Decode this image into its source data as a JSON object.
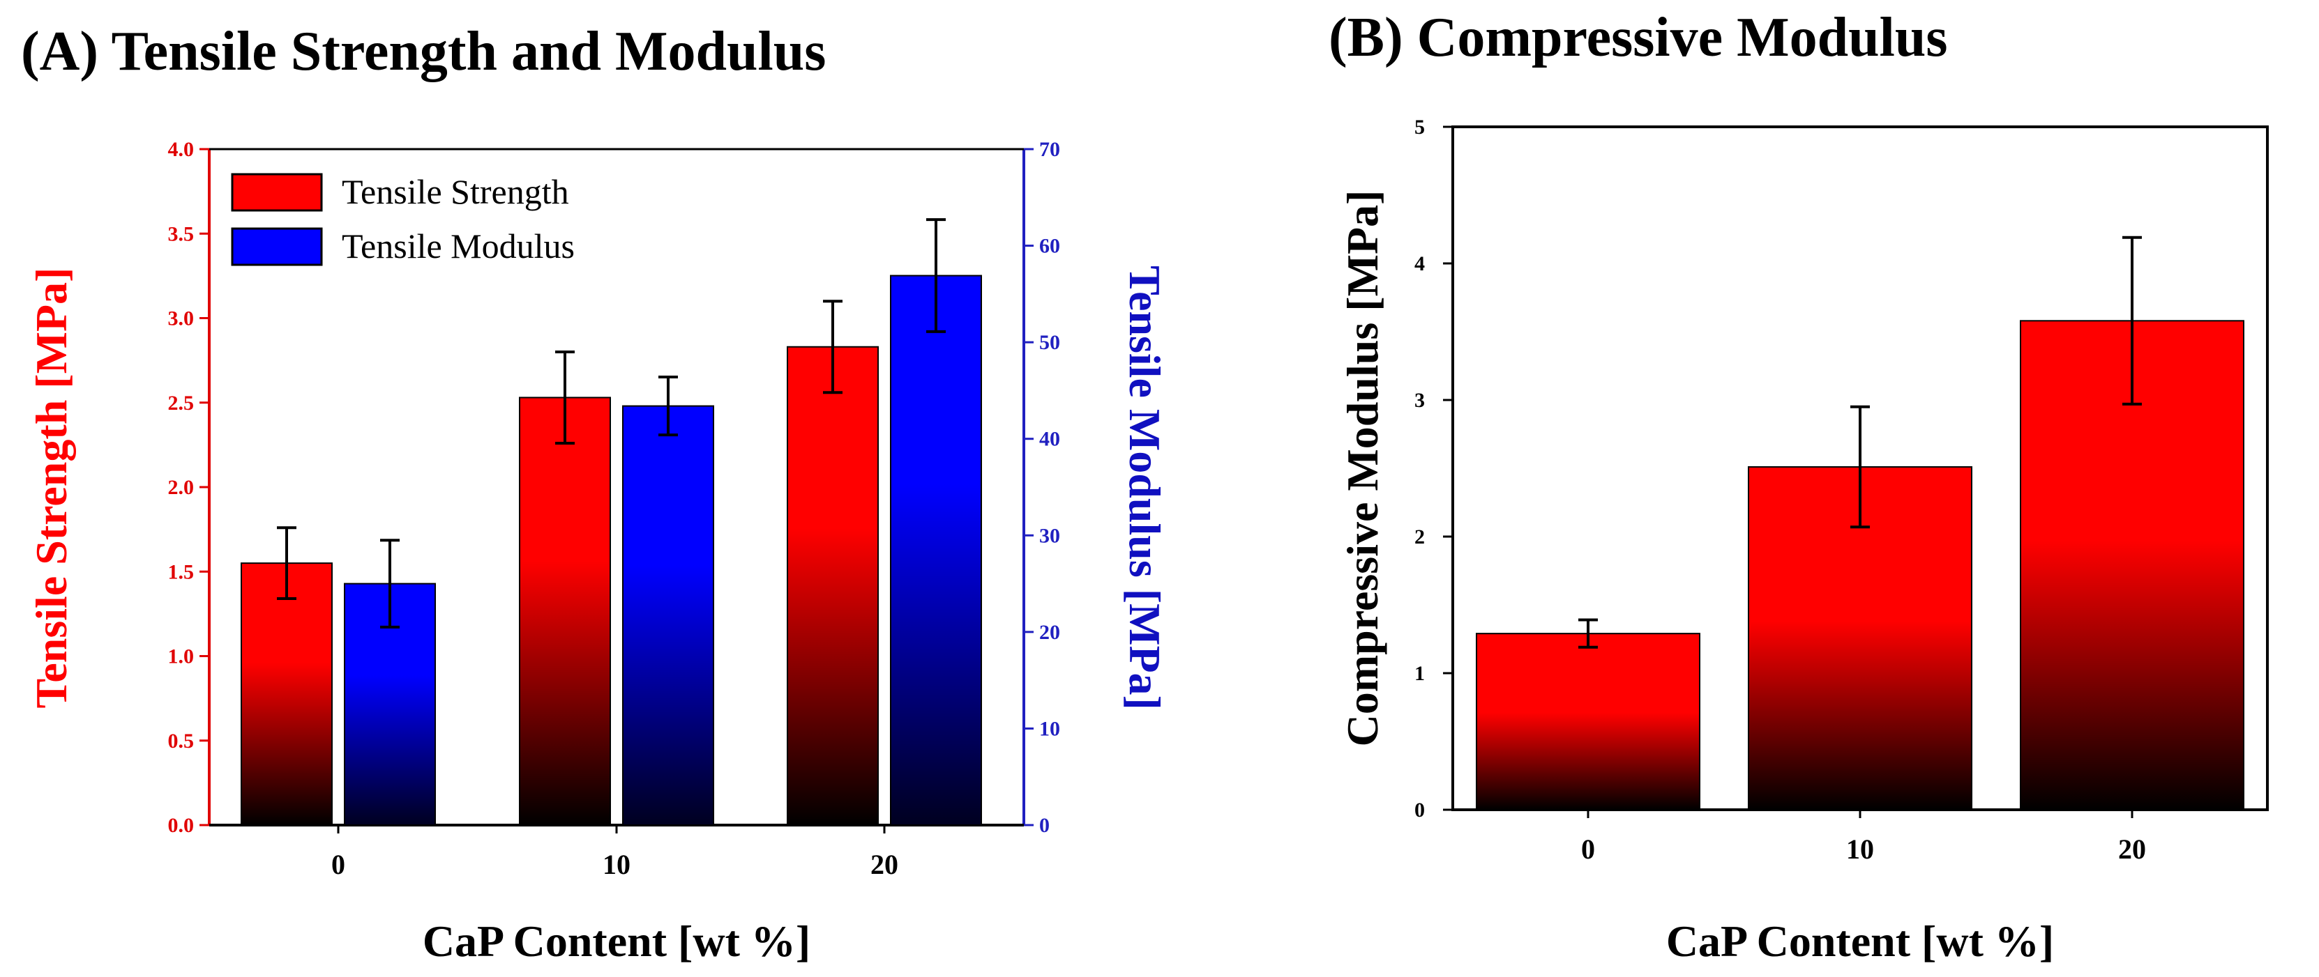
{
  "colors": {
    "strength": "#ff0000",
    "modulus": "#0000ff",
    "dark": "#000000",
    "axis_red": "#e00000",
    "axis_blue": "#2020c0"
  },
  "chart_data": [
    {
      "type": "bar",
      "title": "(A) Tensile Strength and Modulus",
      "categories": [
        "0",
        "10",
        "20"
      ],
      "xlabel": "CaP Content [wt %]",
      "ylabel": "Tensile Strength [MPa]",
      "ylabel_right": "Tensile Modulus [MPa]",
      "ylim": [
        0,
        4.0
      ],
      "ylim_right": [
        0,
        70
      ],
      "yticks": [
        "0.0",
        "0.5",
        "1.0",
        "1.5",
        "2.0",
        "2.5",
        "3.0",
        "3.5",
        "4.0"
      ],
      "yticks_right": [
        "0",
        "10",
        "20",
        "30",
        "40",
        "50",
        "60",
        "70"
      ],
      "legend_position": "top-left",
      "series": [
        {
          "name": "Tensile Strength",
          "axis": "left",
          "values": [
            1.55,
            2.53,
            2.83
          ],
          "errors": [
            0.21,
            0.27,
            0.27
          ]
        },
        {
          "name": "Tensile Modulus",
          "axis": "right",
          "values": [
            25.0,
            43.4,
            56.9
          ],
          "errors": [
            4.5,
            3.0,
            5.8
          ]
        }
      ]
    },
    {
      "type": "bar",
      "title": "(B) Compressive Modulus",
      "categories": [
        "0",
        "10",
        "20"
      ],
      "xlabel": "CaP Content [wt %]",
      "ylabel": "Compressive Modulus [MPa]",
      "ylim": [
        0,
        5
      ],
      "yticks": [
        "0",
        "1",
        "2",
        "3",
        "4",
        "5"
      ],
      "series": [
        {
          "name": "Compressive Modulus",
          "values": [
            1.29,
            2.51,
            3.58
          ],
          "errors": [
            0.1,
            0.44,
            0.61
          ]
        }
      ]
    }
  ]
}
